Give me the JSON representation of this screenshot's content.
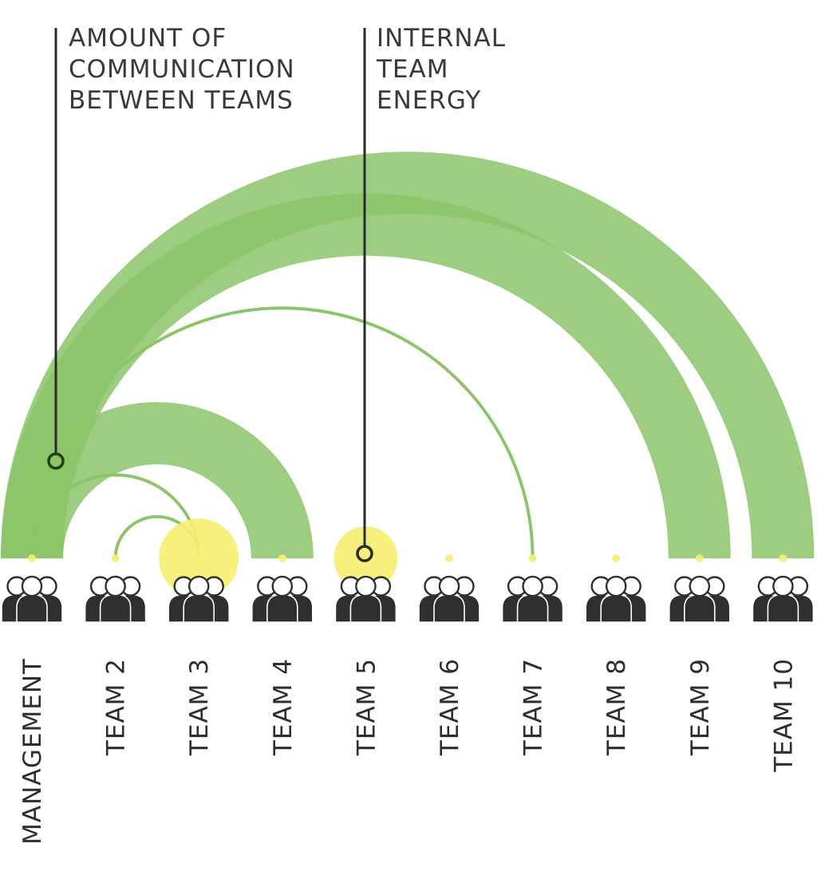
{
  "legend": {
    "communication": [
      "AMOUNT OF",
      "COMMUNICATION",
      "BETWEEN TEAMS"
    ],
    "energy": [
      "INTERNAL",
      "TEAM",
      "ENERGY"
    ]
  },
  "colors": {
    "arc": "#8cc46a",
    "arc_overlap": "#5c9e3a",
    "energy": "#f6ef72",
    "leader_line": "#2b2b2b",
    "people": "#2f2f2f"
  },
  "teams": [
    {
      "name": "MANAGEMENT",
      "energy": 0.05
    },
    {
      "name": "TEAM 2",
      "energy": 0.05
    },
    {
      "name": "TEAM 3",
      "energy": 1.0
    },
    {
      "name": "TEAM 4",
      "energy": 0.05
    },
    {
      "name": "TEAM 5",
      "energy": 0.8
    },
    {
      "name": "TEAM 6",
      "energy": 0.05
    },
    {
      "name": "TEAM 7",
      "energy": 0.05
    },
    {
      "name": "TEAM 8",
      "energy": 0.05
    },
    {
      "name": "TEAM 9",
      "energy": 0.05
    },
    {
      "name": "TEAM 10",
      "energy": 0.05
    }
  ],
  "links": [
    {
      "from": "MANAGEMENT",
      "to": "TEAM 10",
      "amount": 1.0
    },
    {
      "from": "MANAGEMENT",
      "to": "TEAM 9",
      "amount": 1.0
    },
    {
      "from": "MANAGEMENT",
      "to": "TEAM 4",
      "amount": 1.0
    },
    {
      "from": "MANAGEMENT",
      "to": "TEAM 7",
      "amount": 0.05
    },
    {
      "from": "MANAGEMENT",
      "to": "TEAM 3",
      "amount": 0.05
    },
    {
      "from": "TEAM 2",
      "to": "TEAM 3",
      "amount": 0.05
    }
  ]
}
